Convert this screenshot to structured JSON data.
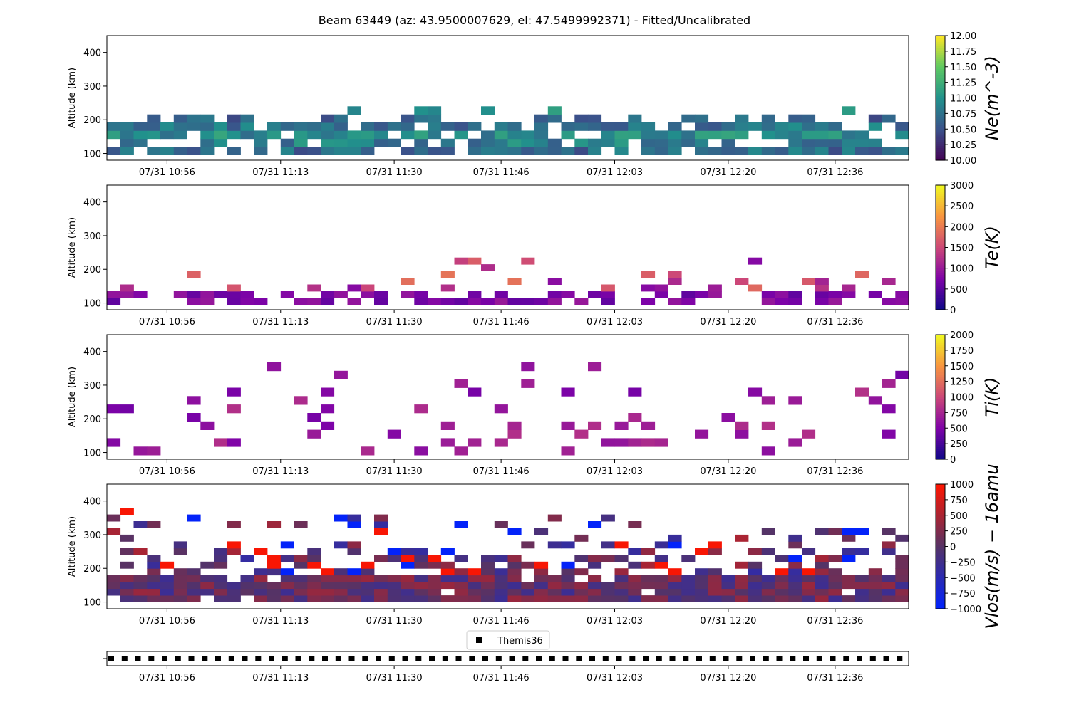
{
  "figure": {
    "title": "Beam 63449 (az: 43.9500007629, el: 47.5499992371) - Fitted/Uncalibrated"
  },
  "x_axis": {
    "tick_labels": [
      "07/31 10:56",
      "07/31 11:13",
      "07/31 11:30",
      "07/31 11:46",
      "07/31 12:03",
      "07/31 12:20",
      "07/31 12:36"
    ],
    "tick_minutes": [
      56,
      73,
      90,
      106,
      123,
      140,
      156
    ],
    "range_minutes": [
      47,
      167
    ],
    "column_minutes": 2
  },
  "chart_data": [
    {
      "type": "heatmap",
      "name": "ne",
      "ylabel": "Altitude (km)",
      "yticks": [
        100,
        200,
        300,
        400
      ],
      "ylim": [
        80,
        450
      ],
      "colorbar_label": "Ne(m^-3)",
      "colorbar_ticks": [
        "10.00",
        "10.25",
        "10.50",
        "10.75",
        "11.00",
        "11.25",
        "11.50",
        "11.75",
        "12.00"
      ],
      "clim": [
        10,
        12
      ],
      "colormap": [
        "#440154",
        "#3b528b",
        "#21918c",
        "#5ec962",
        "#fde725"
      ],
      "altitude_gates_km": [
        108,
        132,
        156,
        180,
        204,
        228
      ],
      "approx_values_log10": [
        10.7,
        10.85,
        10.95,
        10.75,
        10.6,
        10.9
      ]
    },
    {
      "type": "heatmap",
      "name": "te",
      "ylabel": "Altitude (km)",
      "yticks": [
        100,
        200,
        300,
        400
      ],
      "ylim": [
        80,
        450
      ],
      "colorbar_label": "Te(K)",
      "colorbar_ticks": [
        "0",
        "500",
        "1000",
        "1500",
        "2000",
        "2500",
        "3000"
      ],
      "clim": [
        0,
        3000
      ],
      "colormap": [
        "#0d0887",
        "#7e03a8",
        "#cc4778",
        "#f89540",
        "#f0f921"
      ],
      "altitude_gates_km": [
        105,
        125,
        145,
        165,
        185,
        205,
        225
      ]
    },
    {
      "type": "heatmap",
      "name": "ti",
      "ylabel": "Altitude (km)",
      "yticks": [
        100,
        200,
        300,
        400
      ],
      "ylim": [
        80,
        450
      ],
      "colorbar_label": "Ti(K)",
      "colorbar_ticks": [
        "0",
        "250",
        "500",
        "750",
        "1000",
        "1250",
        "1500",
        "1750",
        "2000"
      ],
      "clim": [
        0,
        2000
      ],
      "colormap": [
        "#0d0887",
        "#7e03a8",
        "#cc4778",
        "#f89540",
        "#f0f921"
      ],
      "altitude_gates_km": [
        105,
        130,
        155,
        180,
        205,
        230,
        255,
        280,
        305,
        330,
        355
      ]
    },
    {
      "type": "heatmap",
      "name": "vlos",
      "ylabel": "Altitude (km)",
      "yticks": [
        100,
        200,
        300,
        400
      ],
      "ylim": [
        80,
        450
      ],
      "colorbar_label": "Vlos(m/s) − 16amu",
      "colorbar_ticks": [
        "1000",
        "750",
        "500",
        "250",
        "0",
        "−250",
        "−500",
        "−750",
        "−1000"
      ],
      "clim": [
        -1000,
        1000
      ],
      "colormap": [
        "#0022ff",
        "#553366",
        "#ff1500"
      ],
      "altitude_gates_km": [
        110,
        130,
        150,
        170,
        190,
        210,
        230,
        250,
        270,
        290,
        310,
        330,
        350,
        370
      ]
    },
    {
      "type": "scatter",
      "name": "themis36",
      "legend": [
        "Themis36"
      ],
      "marker": "square",
      "color": "#000000"
    }
  ]
}
